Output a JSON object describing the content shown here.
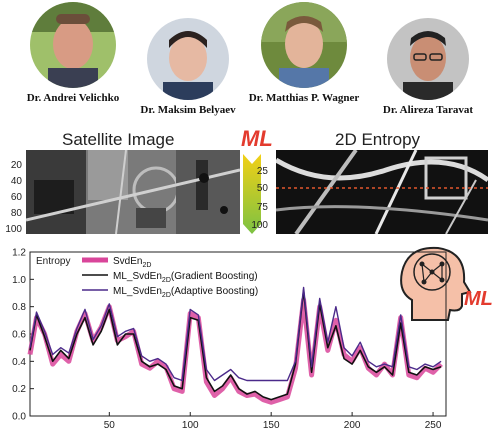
{
  "people": [
    {
      "name": "Dr. Andrei Velichko",
      "photo": "portrait-photo"
    },
    {
      "name": "Dr. Maksim Belyaev",
      "photo": "portrait-photo"
    },
    {
      "name": "Dr. Matthias P. Wagner",
      "photo": "portrait-photo"
    },
    {
      "name": "Dr. Alireza Taravat",
      "photo": "portrait-photo"
    }
  ],
  "panels": {
    "satellite_title": "Satellite Image",
    "entropy_title": "2D Entropy",
    "ml_logo_text": "ML",
    "yticks": [
      "20",
      "40",
      "60",
      "80",
      "100"
    ],
    "entropy_yticks": [
      "25",
      "50",
      "75",
      "100"
    ],
    "ml_head_text": "ML",
    "colors": {
      "ml_red": "#e33b2e",
      "arrow_green": "#7cc243",
      "arrow_yellow": "#f2d016"
    }
  },
  "chart_data": {
    "type": "line",
    "ylabel": "Entropy",
    "xlim": [
      1,
      258
    ],
    "ylim": [
      0.0,
      1.2
    ],
    "xticks": [
      50,
      100,
      150,
      200,
      250
    ],
    "yticks": [
      0.0,
      0.2,
      0.4,
      0.6,
      0.8,
      1.0,
      1.2
    ],
    "ytick_labels": [
      "0.0",
      "0.2",
      "0.4",
      "0.6",
      "0.8",
      "1.0",
      "1.2"
    ],
    "xtick_labels": [
      "50",
      "100",
      "150",
      "200",
      "250"
    ],
    "legend_position": "top-left",
    "series": [
      {
        "name": "SvdEn",
        "name_sub": "2D",
        "name_suffix": "",
        "color": "#d9459a",
        "x": [
          1,
          5,
          10,
          15,
          20,
          25,
          30,
          35,
          40,
          45,
          50,
          55,
          60,
          65,
          70,
          75,
          80,
          85,
          90,
          95,
          100,
          105,
          110,
          115,
          120,
          125,
          130,
          135,
          140,
          145,
          150,
          155,
          160,
          165,
          170,
          175,
          180,
          185,
          190,
          195,
          200,
          205,
          210,
          215,
          220,
          225,
          230,
          235,
          240,
          245,
          250,
          255
        ],
        "y": [
          0.45,
          0.72,
          0.6,
          0.38,
          0.45,
          0.4,
          0.62,
          0.75,
          0.55,
          0.65,
          0.8,
          0.55,
          0.58,
          0.62,
          0.38,
          0.35,
          0.4,
          0.36,
          0.2,
          0.18,
          0.75,
          0.72,
          0.25,
          0.15,
          0.2,
          0.28,
          0.18,
          0.15,
          0.16,
          0.12,
          0.1,
          0.12,
          0.14,
          0.35,
          0.85,
          0.3,
          0.8,
          0.48,
          0.7,
          0.45,
          0.4,
          0.5,
          0.35,
          0.3,
          0.38,
          0.3,
          0.72,
          0.3,
          0.28,
          0.35,
          0.32,
          0.38
        ]
      },
      {
        "name": "ML_SvdEn",
        "name_sub": "2D",
        "name_suffix": "(Gradient Boosting)",
        "color": "#111111",
        "x": [
          1,
          5,
          10,
          15,
          20,
          25,
          30,
          35,
          40,
          45,
          50,
          55,
          60,
          65,
          70,
          75,
          80,
          85,
          90,
          95,
          100,
          105,
          110,
          115,
          120,
          125,
          130,
          135,
          140,
          145,
          150,
          155,
          160,
          165,
          170,
          175,
          180,
          185,
          190,
          195,
          200,
          205,
          210,
          215,
          220,
          225,
          230,
          235,
          240,
          245,
          250,
          255
        ],
        "y": [
          0.48,
          0.74,
          0.58,
          0.4,
          0.48,
          0.42,
          0.6,
          0.72,
          0.52,
          0.62,
          0.78,
          0.52,
          0.6,
          0.6,
          0.4,
          0.36,
          0.38,
          0.34,
          0.22,
          0.2,
          0.72,
          0.7,
          0.28,
          0.18,
          0.22,
          0.3,
          0.2,
          0.16,
          0.18,
          0.14,
          0.12,
          0.14,
          0.16,
          0.38,
          0.92,
          0.32,
          0.82,
          0.5,
          0.66,
          0.42,
          0.38,
          0.48,
          0.36,
          0.32,
          0.36,
          0.3,
          0.68,
          0.32,
          0.3,
          0.36,
          0.34,
          0.36
        ]
      },
      {
        "name": "ML_SvdEn",
        "name_sub": "2D",
        "name_suffix": "(Adaptive Boosting)",
        "color": "#4b2a8a",
        "x": [
          1,
          5,
          10,
          15,
          20,
          25,
          30,
          35,
          40,
          45,
          50,
          55,
          60,
          65,
          70,
          75,
          80,
          85,
          90,
          95,
          100,
          105,
          110,
          115,
          120,
          125,
          130,
          135,
          140,
          145,
          150,
          155,
          160,
          165,
          170,
          175,
          180,
          185,
          190,
          195,
          200,
          205,
          210,
          215,
          220,
          225,
          230,
          235,
          240,
          245,
          250,
          255
        ],
        "y": [
          0.5,
          0.76,
          0.62,
          0.45,
          0.5,
          0.46,
          0.64,
          0.78,
          0.56,
          0.66,
          0.82,
          0.58,
          0.62,
          0.64,
          0.44,
          0.4,
          0.42,
          0.38,
          0.28,
          0.26,
          0.78,
          0.74,
          0.34,
          0.26,
          0.3,
          0.34,
          0.28,
          0.26,
          0.26,
          0.26,
          0.26,
          0.26,
          0.26,
          0.4,
          0.94,
          0.36,
          0.86,
          0.54,
          0.8,
          0.5,
          0.44,
          0.54,
          0.4,
          0.36,
          0.38,
          0.36,
          0.74,
          0.36,
          0.34,
          0.38,
          0.36,
          0.4
        ]
      }
    ]
  }
}
